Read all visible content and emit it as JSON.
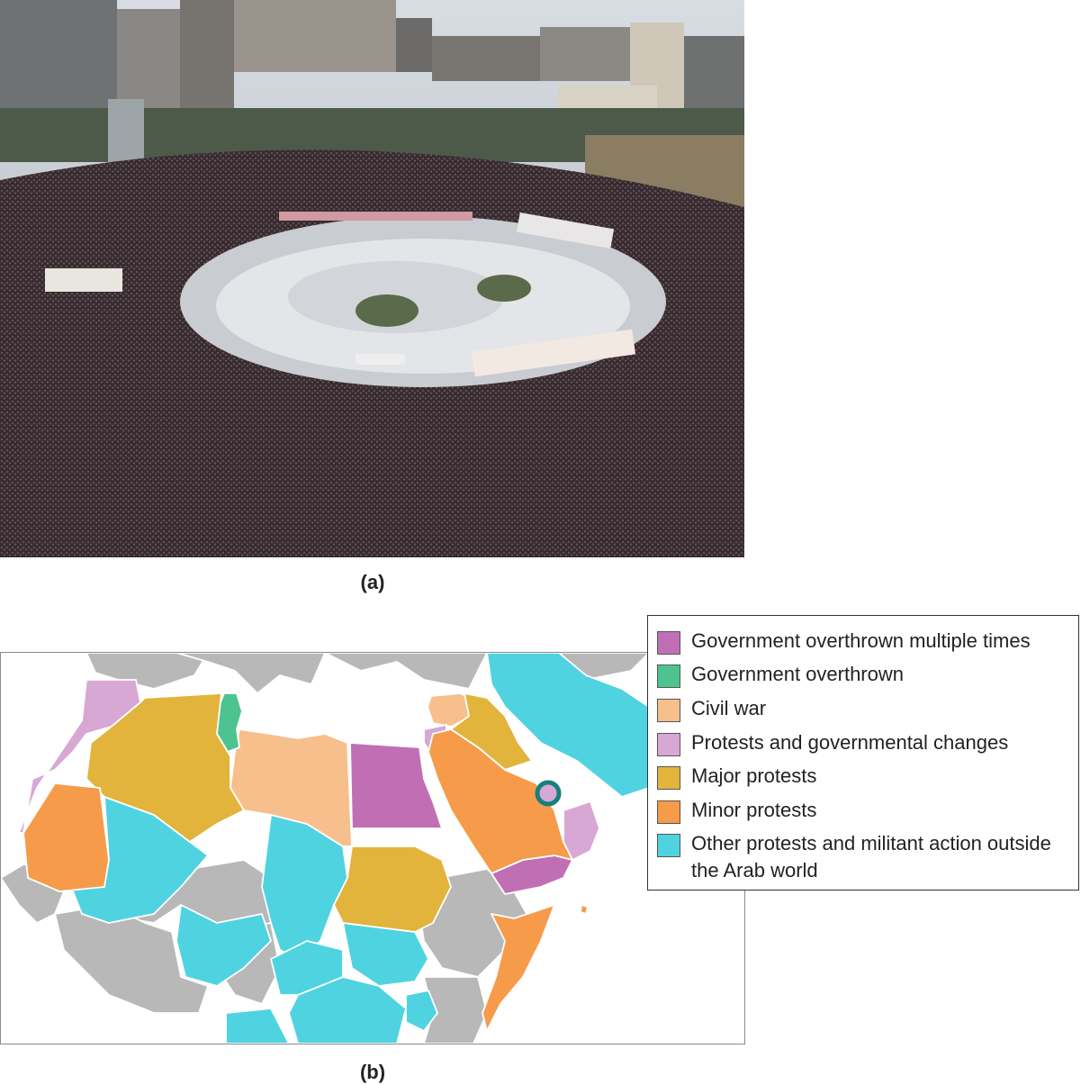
{
  "captions": {
    "a": "(a)",
    "b": "(b)"
  },
  "photo": {
    "subject": "crowded-square-protest-photo"
  },
  "legend": {
    "items": [
      {
        "label": "Government overthrown multiple times",
        "color": "#c16fb5"
      },
      {
        "label": "Government overthrown",
        "color": "#4dc48f"
      },
      {
        "label": "Civil war",
        "color": "#f7bf8c"
      },
      {
        "label": "Protests and governmental changes",
        "color": "#d8a8d4"
      },
      {
        "label": "Major protests",
        "color": "#e2b43c"
      },
      {
        "label": "Minor protests",
        "color": "#f59b4a"
      },
      {
        "label": "Other protests and militant action outside the Arab world",
        "color": "#4fd3e0"
      }
    ]
  },
  "map": {
    "colors": {
      "water": "#ffffff",
      "other_land": "#b8b8b8",
      "border": "#ffffff"
    },
    "marker": {
      "fill": "#d8a8d4",
      "stroke": "#17807a"
    }
  }
}
